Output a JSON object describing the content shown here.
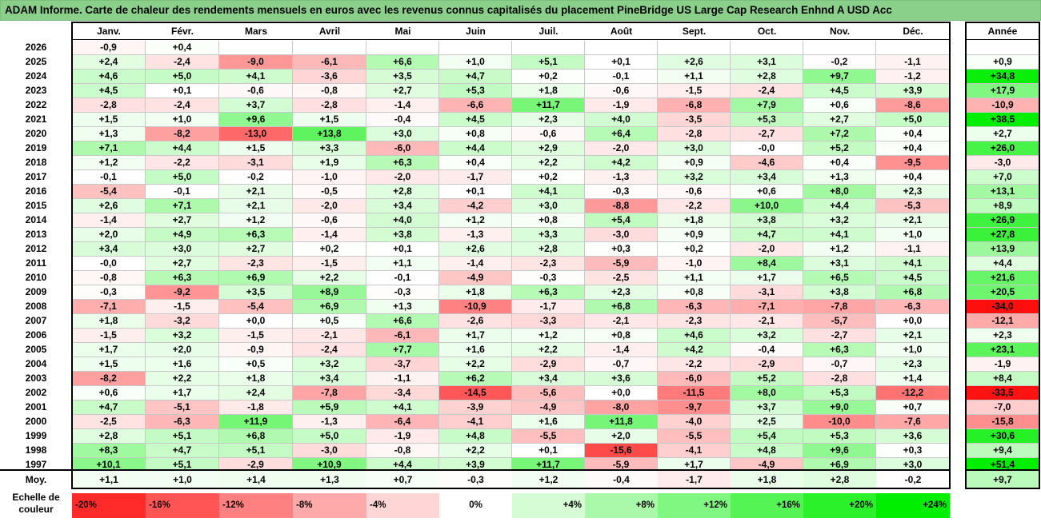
{
  "title": "ADAM Informe. Carte de chaleur des rendements mensuels en euros avec les revenus connus capitalisés du placement PineBridge US Large Cap Research Enhnd A USD Acc",
  "colors": {
    "neg_strong": "#ff0000",
    "neutral": "#ffffff",
    "pos_strong": "#00ee00",
    "header_bg": "#8ad08a"
  },
  "chart_data": {
    "type": "heatmap",
    "title": "ADAM Informe. Carte de chaleur des rendements mensuels en euros avec les revenus connus capitalisés du placement PineBridge US Large Cap Research Enhnd A USD Acc",
    "months": [
      "Janv.",
      "Févr.",
      "Mars",
      "Avril",
      "Mai",
      "Juin",
      "Juil.",
      "Août",
      "Sept.",
      "Oct.",
      "Nov.",
      "Déc."
    ],
    "year_header": "Année",
    "rows": [
      {
        "year": "2026",
        "values": [
          "-0,9",
          "+0,4",
          "",
          "",
          "",
          "",
          "",
          "",
          "",
          "",
          "",
          ""
        ],
        "annual": ""
      },
      {
        "year": "2025",
        "values": [
          "+2,4",
          "-2,4",
          "-9,0",
          "-6,1",
          "+6,6",
          "+1,0",
          "+5,1",
          "+0,1",
          "+2,6",
          "+3,1",
          "-0,2",
          "-1,1"
        ],
        "annual": "+0,9"
      },
      {
        "year": "2024",
        "values": [
          "+4,6",
          "+5,0",
          "+4,1",
          "-3,6",
          "+3,5",
          "+4,7",
          "+0,2",
          "-0,1",
          "+1,1",
          "+2,8",
          "+9,7",
          "-1,2"
        ],
        "annual": "+34,8"
      },
      {
        "year": "2023",
        "values": [
          "+4,5",
          "+0,1",
          "-0,6",
          "-0,8",
          "+2,7",
          "+5,3",
          "+1,8",
          "-0,6",
          "-1,5",
          "-2,4",
          "+4,5",
          "+3,9"
        ],
        "annual": "+17,9"
      },
      {
        "year": "2022",
        "values": [
          "-2,8",
          "-2,4",
          "+3,7",
          "-2,8",
          "-1,4",
          "-6,6",
          "+11,7",
          "-1,9",
          "-6,8",
          "+7,9",
          "+0,6",
          "-8,6"
        ],
        "annual": "-10,9"
      },
      {
        "year": "2021",
        "values": [
          "+1,5",
          "+1,0",
          "+9,6",
          "+1,5",
          "-0,4",
          "+4,5",
          "+2,3",
          "+4,0",
          "-3,5",
          "+5,3",
          "+2,7",
          "+5,0"
        ],
        "annual": "+38,5"
      },
      {
        "year": "2020",
        "values": [
          "+1,3",
          "-8,2",
          "-13,0",
          "+13,8",
          "+3,0",
          "+0,8",
          "-0,6",
          "+6,4",
          "-2,8",
          "-2,7",
          "+7,2",
          "+0,4"
        ],
        "annual": "+2,7"
      },
      {
        "year": "2019",
        "values": [
          "+7,1",
          "+4,4",
          "+1,5",
          "+3,3",
          "-6,0",
          "+4,4",
          "+2,9",
          "-2,0",
          "+3,0",
          "-0,0",
          "+5,2",
          "+0,4"
        ],
        "annual": "+26,0"
      },
      {
        "year": "2018",
        "values": [
          "+1,2",
          "-2,2",
          "-3,1",
          "+1,9",
          "+6,3",
          "+0,4",
          "+2,2",
          "+4,2",
          "+0,9",
          "-4,6",
          "+0,4",
          "-9,5"
        ],
        "annual": "-3,0"
      },
      {
        "year": "2017",
        "values": [
          "-0,1",
          "+5,0",
          "-0,2",
          "-1,0",
          "-2,0",
          "-1,7",
          "+0,2",
          "-1,3",
          "+3,2",
          "+3,4",
          "+1,3",
          "+0,4"
        ],
        "annual": "+7,0"
      },
      {
        "year": "2016",
        "values": [
          "-5,4",
          "-0,1",
          "+2,1",
          "-0,5",
          "+2,8",
          "+0,1",
          "+4,1",
          "-0,3",
          "-0,6",
          "+0,6",
          "+8,0",
          "+2,3"
        ],
        "annual": "+13,1"
      },
      {
        "year": "2015",
        "values": [
          "+2,6",
          "+7,1",
          "+2,1",
          "-2,0",
          "+3,4",
          "-4,2",
          "+3,0",
          "-8,8",
          "-2,2",
          "+10,0",
          "+4,4",
          "-5,3"
        ],
        "annual": "+8,9"
      },
      {
        "year": "2014",
        "values": [
          "-1,4",
          "+2,7",
          "+1,2",
          "-0,6",
          "+4,0",
          "+1,2",
          "+0,8",
          "+5,4",
          "+1,8",
          "+3,8",
          "+3,2",
          "+2,1"
        ],
        "annual": "+26,9"
      },
      {
        "year": "2013",
        "values": [
          "+2,0",
          "+4,9",
          "+6,3",
          "-1,4",
          "+3,8",
          "-1,3",
          "+3,3",
          "-3,0",
          "+0,9",
          "+4,7",
          "+4,1",
          "+1,0"
        ],
        "annual": "+27,8"
      },
      {
        "year": "2012",
        "values": [
          "+3,4",
          "+3,0",
          "+2,7",
          "+0,2",
          "+0,1",
          "+2,6",
          "+2,8",
          "+0,3",
          "+0,2",
          "-2,0",
          "+1,2",
          "-1,1"
        ],
        "annual": "+13,9"
      },
      {
        "year": "2011",
        "values": [
          "-0,0",
          "+2,7",
          "-2,3",
          "-1,5",
          "+1,1",
          "-1,4",
          "-2,3",
          "-5,9",
          "-1,0",
          "+8,4",
          "+3,1",
          "+4,1"
        ],
        "annual": "+4,4"
      },
      {
        "year": "2010",
        "values": [
          "-0,8",
          "+6,3",
          "+6,9",
          "+2,2",
          "-0,1",
          "-4,9",
          "-0,3",
          "-2,5",
          "+1,1",
          "+1,7",
          "+6,5",
          "+4,5"
        ],
        "annual": "+21,6"
      },
      {
        "year": "2009",
        "values": [
          "-0,3",
          "-9,2",
          "+3,5",
          "+8,9",
          "-0,3",
          "+1,8",
          "+6,3",
          "+2,3",
          "+0,8",
          "-3,1",
          "+3,8",
          "+6,8"
        ],
        "annual": "+20,5"
      },
      {
        "year": "2008",
        "values": [
          "-7,1",
          "-1,5",
          "-5,4",
          "+6,9",
          "+1,3",
          "-10,9",
          "-1,7",
          "+6,8",
          "-6,3",
          "-7,1",
          "-7,8",
          "-6,3"
        ],
        "annual": "-34,0"
      },
      {
        "year": "2007",
        "values": [
          "+1,8",
          "-3,2",
          "+0,0",
          "+0,5",
          "+6,6",
          "-2,6",
          "-3,3",
          "-2,1",
          "-2,3",
          "-2,1",
          "-5,7",
          "+0,0"
        ],
        "annual": "-12,1"
      },
      {
        "year": "2006",
        "values": [
          "-1,5",
          "+3,2",
          "-1,5",
          "-2,1",
          "-6,1",
          "+1,7",
          "+1,2",
          "+0,8",
          "+4,6",
          "+3,2",
          "-2,7",
          "+2,1"
        ],
        "annual": "+2,3"
      },
      {
        "year": "2005",
        "values": [
          "+1,7",
          "+2,0",
          "-0,9",
          "-2,4",
          "+7,7",
          "+1,6",
          "+2,2",
          "-1,4",
          "+4,2",
          "-0,4",
          "+6,3",
          "+1,0"
        ],
        "annual": "+23,1"
      },
      {
        "year": "2004",
        "values": [
          "+1,5",
          "+1,6",
          "+0,5",
          "+3,2",
          "-3,7",
          "+2,2",
          "-2,9",
          "-0,7",
          "-2,2",
          "-2,9",
          "-0,7",
          "+2,3"
        ],
        "annual": "-1,9"
      },
      {
        "year": "2003",
        "values": [
          "-8,2",
          "+2,2",
          "+1,8",
          "+3,4",
          "-1,1",
          "+6,2",
          "+3,4",
          "+3,6",
          "-6,0",
          "+5,2",
          "-2,8",
          "+1,4"
        ],
        "annual": "+8,4"
      },
      {
        "year": "2002",
        "values": [
          "+0,6",
          "+1,7",
          "+2,4",
          "-7,8",
          "-3,4",
          "-14,5",
          "-5,6",
          "+0,0",
          "-11,5",
          "+8,0",
          "+5,3",
          "-12,2"
        ],
        "annual": "-33,5"
      },
      {
        "year": "2001",
        "values": [
          "+4,7",
          "-5,1",
          "-1,8",
          "+5,9",
          "+4,1",
          "-3,9",
          "-4,9",
          "-8,0",
          "-9,7",
          "+3,7",
          "+9,0",
          "+0,7"
        ],
        "annual": "-7,0"
      },
      {
        "year": "2000",
        "values": [
          "-2,5",
          "-6,3",
          "+11,9",
          "-1,3",
          "-6,4",
          "-4,1",
          "+1,6",
          "+11,8",
          "-4,0",
          "+2,5",
          "-10,0",
          "-7,6"
        ],
        "annual": "-15,8"
      },
      {
        "year": "1999",
        "values": [
          "+2,8",
          "+5,1",
          "+6,8",
          "+5,0",
          "-1,9",
          "+4,8",
          "-5,5",
          "+2,0",
          "-5,5",
          "+5,4",
          "+5,3",
          "+3,6"
        ],
        "annual": "+30,6"
      },
      {
        "year": "1998",
        "values": [
          "+8,3",
          "+4,7",
          "+5,1",
          "-3,0",
          "-0,8",
          "+2,2",
          "+0,1",
          "-15,6",
          "-4,1",
          "+4,8",
          "+9,6",
          "+0,3"
        ],
        "annual": "+9,4"
      },
      {
        "year": "1997",
        "values": [
          "+10,1",
          "+5,1",
          "-2,9",
          "+10,9",
          "+4,4",
          "+3,9",
          "+11,7",
          "-5,9",
          "+1,7",
          "-4,9",
          "+6,9",
          "+3,0"
        ],
        "annual": "+51,4"
      }
    ],
    "average": {
      "label": "Moy.",
      "values": [
        "+1,1",
        "+1,0",
        "+1,4",
        "+1,3",
        "+0,7",
        "-0,3",
        "+1,2",
        "-0,4",
        "-1,7",
        "+1,8",
        "+2,8",
        "-0,2"
      ],
      "annual": "+9,7"
    },
    "legend": {
      "label_line1": "Echelle de",
      "label_line2": "couleur",
      "stops": [
        {
          "label": "-20%",
          "value": -20
        },
        {
          "label": "-16%",
          "value": -16
        },
        {
          "label": "-12%",
          "value": -12
        },
        {
          "label": "-8%",
          "value": -8
        },
        {
          "label": "-4%",
          "value": -4
        },
        {
          "label": "0%",
          "value": 0
        },
        {
          "label": "+4%",
          "value": 4
        },
        {
          "label": "+8%",
          "value": 8
        },
        {
          "label": "+12%",
          "value": 12
        },
        {
          "label": "+16%",
          "value": 16
        },
        {
          "label": "+20%",
          "value": 20
        },
        {
          "label": "+24%",
          "value": 24
        }
      ]
    }
  }
}
